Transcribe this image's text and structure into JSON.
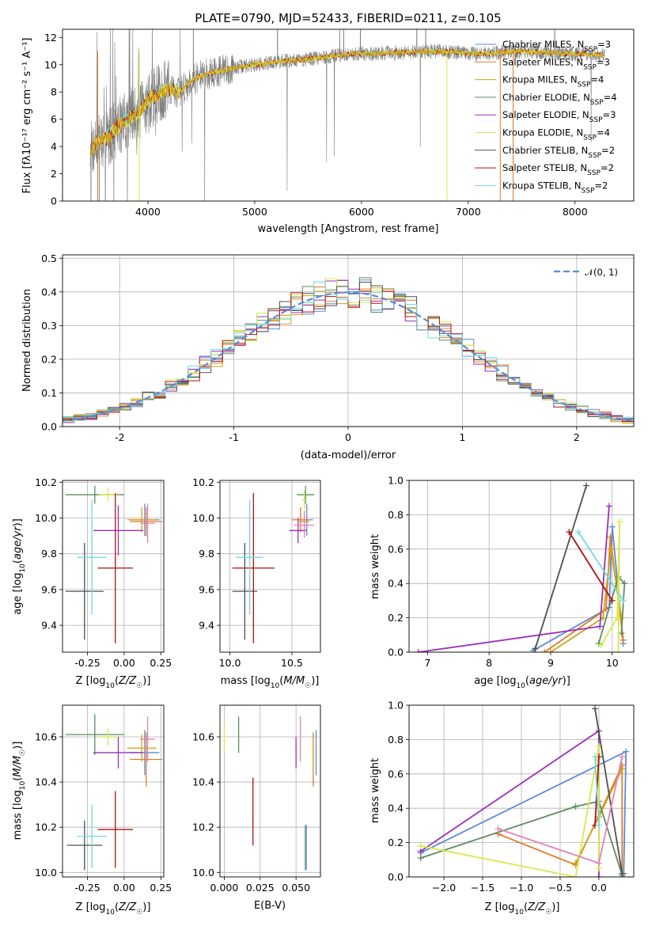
{
  "title": "PLATE=0790, MJD=52433, FIBERID=0211, z=0.105",
  "colors": {
    "Chabrier MILES": "#5b8bd9",
    "Salpeter MILES": "#e07b28",
    "Kroupa MILES": "#d4a017",
    "Chabrier ELODIE": "#5e8c5e",
    "Salpeter ELODIE": "#9b30b8",
    "Kroupa ELODIE": "#d8e84a",
    "Chabrier STELIB": "#505050",
    "Salpeter STELIB": "#b01010",
    "Kroupa STELIB": "#74d8dc",
    "pink": "#e57fb8",
    "spectrum": "#808080",
    "grid": "#b0b0b0",
    "normal": "#5b8bd9"
  },
  "chart_data": [
    {
      "type": "line",
      "title": "PLATE=0790, MJD=52433, FIBERID=0211, z=0.105",
      "xlabel": "wavelength [Angstrom, rest frame]",
      "ylabel": "Flux [fλ10⁻¹⁷ erg cm⁻² s⁻¹ A⁻¹]",
      "xlim": [
        3200,
        8550
      ],
      "ylim": [
        0,
        12.6
      ],
      "xticks": [
        4000,
        5000,
        6000,
        7000,
        8000
      ],
      "yticks": [
        0,
        2,
        4,
        6,
        8,
        10,
        12
      ],
      "grid": false,
      "legend_position": "right",
      "legend": [
        "Chabrier MILES, N_SSP=3",
        "Salpeter MILES, N_SSP=3",
        "Kroupa MILES, N_SSP=4",
        "Chabrier ELODIE, N_SSP=4",
        "Salpeter ELODIE, N_SSP=3",
        "Kroupa ELODIE, N_SSP=4",
        "Chabrier STELIB, N_SSP=2",
        "Salpeter STELIB, N_SSP=2",
        "Kroupa STELIB, N_SSP=2"
      ],
      "model_continuum": {
        "x": [
          3450,
          3520,
          3600,
          3700,
          3800,
          3900,
          4000,
          4100,
          4200,
          4300,
          4400,
          4500,
          4700,
          4900,
          5100,
          5300,
          5500,
          5700,
          5900,
          6100,
          6300,
          6500,
          6700,
          6900,
          7100,
          7300,
          7500,
          7700,
          7900,
          8100,
          8250
        ],
        "y": [
          3.6,
          4.3,
          4.5,
          5.3,
          6.0,
          6.4,
          7.3,
          7.9,
          8.2,
          8.0,
          8.8,
          9.2,
          9.6,
          9.9,
          10.1,
          10.3,
          10.4,
          10.6,
          10.8,
          10.8,
          10.9,
          10.9,
          11.0,
          10.9,
          10.8,
          10.9,
          11.0,
          10.9,
          10.8,
          10.8,
          10.7
        ]
      }
    },
    {
      "type": "line",
      "xlabel": "(data-model)/error",
      "ylabel": "Normed distribution",
      "xlim": [
        -2.5,
        2.5
      ],
      "ylim": [
        0,
        0.51
      ],
      "xticks": [
        -2,
        -1,
        0,
        1,
        2
      ],
      "yticks": [
        0.0,
        0.1,
        0.2,
        0.3,
        0.4,
        0.5
      ],
      "grid": true,
      "legend": [
        "𝒩(0, 1)"
      ],
      "legend_position": "top-right",
      "bin_width": 0.1
    },
    {
      "type": "scatter",
      "xlabel": "Z [log10(Z/Z⊙)]",
      "ylabel": "age  [log10(age/yr)]",
      "xlim": [
        -0.42,
        0.27
      ],
      "ylim": [
        9.25,
        10.21
      ],
      "xticks": [
        -0.25,
        0.0,
        0.25
      ],
      "yticks": [
        9.4,
        9.6,
        9.8,
        10.0,
        10.2
      ],
      "series": [
        {
          "model": "Chabrier MILES",
          "x": 0.14,
          "y": 9.99,
          "xerr": 0.1,
          "yerr": 0.09
        },
        {
          "model": "Salpeter MILES",
          "x": 0.15,
          "y": 9.98,
          "xerr": 0.11,
          "yerr": 0.08
        },
        {
          "model": "Kroupa MILES",
          "x": 0.12,
          "y": 9.99,
          "xerr": 0.1,
          "yerr": 0.07
        },
        {
          "model": "Chabrier ELODIE",
          "x": -0.2,
          "y": 10.13,
          "xerr": 0.2,
          "yerr": 0.05
        },
        {
          "model": "Salpeter ELODIE",
          "x": -0.04,
          "y": 9.93,
          "xerr": 0.17,
          "yerr": 0.14
        },
        {
          "model": "Kroupa ELODIE",
          "x": -0.11,
          "y": 10.13,
          "xerr": 0.06,
          "yerr": 0.04
        },
        {
          "model": "Chabrier STELIB",
          "x": -0.27,
          "y": 9.59,
          "xerr": 0.13,
          "yerr": 0.27
        },
        {
          "model": "Salpeter STELIB",
          "x": -0.06,
          "y": 9.72,
          "xerr": 0.12,
          "yerr": 0.42
        },
        {
          "model": "Kroupa STELIB",
          "x": -0.22,
          "y": 9.78,
          "xerr": 0.1,
          "yerr": 0.32
        },
        {
          "model": "pink",
          "x": 0.16,
          "y": 9.97,
          "xerr": 0.05,
          "yerr": 0.11
        }
      ]
    },
    {
      "type": "scatter",
      "xlabel": "mass [log10(M/M⊙)]",
      "xlim": [
        9.92,
        10.73
      ],
      "ylim": [
        9.25,
        10.21
      ],
      "xticks": [
        10.0,
        10.5
      ],
      "yticks": [
        9.4,
        9.6,
        9.8,
        10.0,
        10.2
      ],
      "series": [
        {
          "model": "Chabrier MILES",
          "x": 10.62,
          "y": 9.99,
          "xerr": 0.05,
          "yerr": 0.09
        },
        {
          "model": "Salpeter MILES",
          "x": 10.57,
          "y": 9.99,
          "xerr": 0.07,
          "yerr": 0.07
        },
        {
          "model": "Kroupa MILES",
          "x": 10.6,
          "y": 9.98,
          "xerr": 0.04,
          "yerr": 0.06
        },
        {
          "model": "Chabrier ELODIE",
          "x": 10.61,
          "y": 10.13,
          "xerr": 0.07,
          "yerr": 0.05
        },
        {
          "model": "Salpeter ELODIE",
          "x": 10.55,
          "y": 9.93,
          "xerr": 0.07,
          "yerr": 0.07
        },
        {
          "model": "Kroupa ELODIE",
          "x": 10.6,
          "y": 10.1,
          "xerr": 0.02,
          "yerr": 0.05
        },
        {
          "model": "Chabrier STELIB",
          "x": 10.12,
          "y": 9.59,
          "xerr": 0.1,
          "yerr": 0.27
        },
        {
          "model": "Salpeter STELIB",
          "x": 10.19,
          "y": 9.72,
          "xerr": 0.17,
          "yerr": 0.42
        },
        {
          "model": "Kroupa STELIB",
          "x": 10.16,
          "y": 9.78,
          "xerr": 0.11,
          "yerr": 0.32
        },
        {
          "model": "pink",
          "x": 10.6,
          "y": 9.96,
          "xerr": 0.08,
          "yerr": 0.07
        }
      ]
    },
    {
      "type": "line",
      "xlabel": "age  [log10(age/yr)]",
      "ylabel": "mass weight",
      "xlim": [
        6.7,
        10.35
      ],
      "ylim": [
        0,
        1.0
      ],
      "xticks": [
        7,
        8,
        9,
        10
      ],
      "yticks": [
        0.0,
        0.2,
        0.4,
        0.6,
        0.8,
        1.0
      ],
      "grid": true,
      "series": [
        {
          "model": "Chabrier MILES",
          "x": [
            8.72,
            9.95,
            10.0,
            10.18
          ],
          "y": [
            0.01,
            0.26,
            0.73,
            0.05
          ]
        },
        {
          "model": "Salpeter MILES",
          "x": [
            8.9,
            9.9,
            9.97,
            10.18
          ],
          "y": [
            0.0,
            0.25,
            0.67,
            0.07
          ]
        },
        {
          "model": "Kroupa MILES",
          "x": [
            9.0,
            9.85,
            9.98,
            10.15
          ],
          "y": [
            0.0,
            0.2,
            0.6,
            0.2
          ]
        },
        {
          "model": "Chabrier ELODIE",
          "x": [
            9.78,
            10.1,
            10.2,
            10.15
          ],
          "y": [
            0.05,
            0.44,
            0.4,
            0.11
          ]
        },
        {
          "model": "Salpeter ELODIE",
          "x": [
            6.85,
            9.8,
            9.95
          ],
          "y": [
            0.0,
            0.15,
            0.85
          ]
        },
        {
          "model": "Kroupa ELODIE",
          "x": [
            9.82,
            10.08,
            10.12,
            10.1
          ],
          "y": [
            0.04,
            0.2,
            0.76,
            0.0
          ]
        },
        {
          "model": "Chabrier STELIB",
          "x": [
            8.75,
            9.58
          ],
          "y": [
            0.02,
            0.97
          ]
        },
        {
          "model": "Salpeter STELIB",
          "x": [
            9.3,
            10.0
          ],
          "y": [
            0.7,
            0.3
          ]
        },
        {
          "model": "Kroupa STELIB",
          "x": [
            9.45,
            10.18
          ],
          "y": [
            0.7,
            0.3
          ]
        }
      ]
    },
    {
      "type": "scatter",
      "xlabel": "Z [log10(Z/Z⊙)]",
      "ylabel": "mass [log10(M/M⊙)]",
      "xlim": [
        -0.42,
        0.27
      ],
      "ylim": [
        9.98,
        10.74
      ],
      "xticks": [
        -0.25,
        0.0,
        0.25
      ],
      "yticks": [
        10.0,
        10.2,
        10.4,
        10.6
      ],
      "series": [
        {
          "model": "Chabrier MILES",
          "x": 0.14,
          "y": 10.53,
          "xerr": 0.1,
          "yerr": 0.1
        },
        {
          "model": "Salpeter MILES",
          "x": 0.15,
          "y": 10.5,
          "xerr": 0.11,
          "yerr": 0.12
        },
        {
          "model": "Kroupa MILES",
          "x": 0.12,
          "y": 10.55,
          "xerr": 0.1,
          "yerr": 0.06
        },
        {
          "model": "Chabrier ELODIE",
          "x": -0.2,
          "y": 10.61,
          "xerr": 0.2,
          "yerr": 0.09
        },
        {
          "model": "Salpeter ELODIE",
          "x": -0.04,
          "y": 10.53,
          "xerr": 0.17,
          "yerr": 0.07
        },
        {
          "model": "Kroupa ELODIE",
          "x": -0.11,
          "y": 10.6,
          "xerr": 0.06,
          "yerr": 0.04
        },
        {
          "model": "Chabrier STELIB",
          "x": -0.27,
          "y": 10.12,
          "xerr": 0.12,
          "yerr": 0.11
        },
        {
          "model": "Salpeter STELIB",
          "x": -0.06,
          "y": 10.19,
          "xerr": 0.12,
          "yerr": 0.17
        },
        {
          "model": "Kroupa STELIB",
          "x": -0.22,
          "y": 10.16,
          "xerr": 0.1,
          "yerr": 0.14
        },
        {
          "model": "pink",
          "x": 0.16,
          "y": 10.59,
          "xerr": 0.05,
          "yerr": 0.1
        }
      ]
    },
    {
      "type": "scatter",
      "xlabel": "E(B-V)",
      "xlim": [
        -0.003,
        0.067
      ],
      "ylim": [
        9.98,
        10.74
      ],
      "xticks": [
        0.0,
        0.025,
        0.05
      ],
      "yticks": [
        10.0,
        10.2,
        10.4,
        10.6
      ],
      "series": [
        {
          "model": "Chabrier MILES",
          "x": 0.064,
          "y": 10.53,
          "yerr": 0.1
        },
        {
          "model": "Salpeter MILES",
          "x": 0.062,
          "y": 10.5,
          "yerr": 0.12
        },
        {
          "model": "Kroupa MILES",
          "x": 0.062,
          "y": 10.52,
          "yerr": 0.07
        },
        {
          "model": "Chabrier ELODIE",
          "x": 0.01,
          "y": 10.61,
          "yerr": 0.08
        },
        {
          "model": "Salpeter ELODIE",
          "x": 0.05,
          "y": 10.53,
          "yerr": 0.07
        },
        {
          "model": "Kroupa ELODIE",
          "x": 0.0,
          "y": 10.6,
          "yerr": 0.06
        },
        {
          "model": "Chabrier STELIB",
          "x": 0.057,
          "y": 10.11,
          "yerr": 0.1
        },
        {
          "model": "Salpeter STELIB",
          "x": 0.02,
          "y": 10.27,
          "yerr": 0.15
        },
        {
          "model": "Kroupa STELIB",
          "x": 0.056,
          "y": 10.11,
          "yerr": 0.1
        },
        {
          "model": "pink",
          "x": 0.053,
          "y": 10.59,
          "yerr": 0.1
        }
      ]
    },
    {
      "type": "line",
      "xlabel": "Z [log10(Z/Z⊙)]",
      "ylabel": "mass weight",
      "xlim": [
        -2.45,
        0.45
      ],
      "ylim": [
        0,
        1.0
      ],
      "xticks": [
        -2.0,
        -1.5,
        -1.0,
        -0.5,
        0.0
      ],
      "yticks": [
        0.0,
        0.2,
        0.4,
        0.6,
        0.8,
        1.0
      ],
      "grid": true,
      "series": [
        {
          "model": "Chabrier MILES",
          "x": [
            -2.3,
            0.35,
            0.32
          ],
          "y": [
            0.14,
            0.73,
            0.02
          ]
        },
        {
          "model": "Salpeter MILES",
          "x": [
            -1.3,
            -0.3,
            0.3,
            0.3
          ],
          "y": [
            0.25,
            0.07,
            0.65,
            0.0
          ]
        },
        {
          "model": "Kroupa MILES",
          "x": [
            -0.3,
            0.0,
            0.3
          ],
          "y": [
            0.08,
            0.35,
            0.63
          ]
        },
        {
          "model": "Chabrier ELODIE",
          "x": [
            -2.3,
            -0.3,
            0.0,
            0.3
          ],
          "y": [
            0.11,
            0.41,
            0.44,
            0.01
          ]
        },
        {
          "model": "Salpeter ELODIE",
          "x": [
            -2.3,
            0.0,
            0.0
          ],
          "y": [
            0.15,
            0.85,
            0.0
          ]
        },
        {
          "model": "Kroupa ELODIE",
          "x": [
            -2.3,
            -0.3,
            0.0,
            0.0
          ],
          "y": [
            0.18,
            0.0,
            0.76,
            0.05
          ]
        },
        {
          "model": "Chabrier STELIB",
          "x": [
            -0.05,
            0.3
          ],
          "y": [
            0.98,
            0.02
          ]
        },
        {
          "model": "Salpeter STELIB",
          "x": [
            -0.05,
            0.0
          ],
          "y": [
            0.3,
            0.7
          ]
        },
        {
          "model": "Kroupa STELIB",
          "x": [
            -0.05,
            0.0
          ],
          "y": [
            0.7,
            0.3
          ]
        },
        {
          "model": "pink",
          "x": [
            -1.3,
            0.0,
            0.3
          ],
          "y": [
            0.28,
            0.08,
            0.7
          ]
        }
      ]
    }
  ],
  "labels": {
    "p1_ylabel": "Flux [fλ10⁻¹⁷ erg cm⁻² s⁻¹ A⁻¹]",
    "p1_xlabel": "wavelength [Angstrom, rest frame]",
    "p2_ylabel": "Normed distribution",
    "p2_xlabel": "(data-model)/error",
    "p2_legend": "𝒩(0, 1)"
  }
}
